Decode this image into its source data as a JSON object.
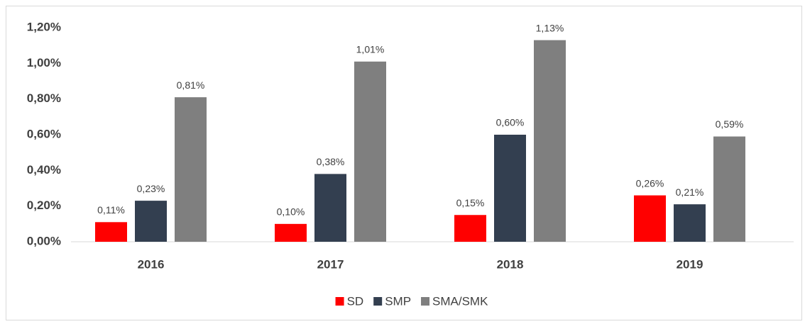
{
  "chart_data": {
    "type": "bar",
    "categories": [
      "2016",
      "2017",
      "2018",
      "2019"
    ],
    "series": [
      {
        "name": "SD",
        "color": "#ff0000",
        "values": [
          0.11,
          0.1,
          0.15,
          0.26
        ],
        "value_labels": [
          "0,11%",
          "0,10%",
          "0,15%",
          "0,26%"
        ]
      },
      {
        "name": "SMP",
        "color": "#333f50",
        "values": [
          0.23,
          0.38,
          0.6,
          0.21
        ],
        "value_labels": [
          "0,23%",
          "0,38%",
          "0,60%",
          "0,21%"
        ]
      },
      {
        "name": "SMA/SMK",
        "color": "#7f7f7f",
        "values": [
          0.81,
          1.01,
          1.13,
          0.59
        ],
        "value_labels": [
          "0,81%",
          "1,01%",
          "1,13%",
          "0,59%"
        ]
      }
    ],
    "ylim": [
      0,
      1.2
    ],
    "yticks": [
      {
        "value": 0,
        "label": "0,00%"
      },
      {
        "value": 0.2,
        "label": "0,20%"
      },
      {
        "value": 0.4,
        "label": "0,40%"
      },
      {
        "value": 0.6,
        "label": "0,60%"
      },
      {
        "value": 0.8,
        "label": "0,80%"
      },
      {
        "value": 1.0,
        "label": "1,00%"
      },
      {
        "value": 1.2,
        "label": "1,20%"
      }
    ],
    "grid": false,
    "legend": "bottom"
  }
}
